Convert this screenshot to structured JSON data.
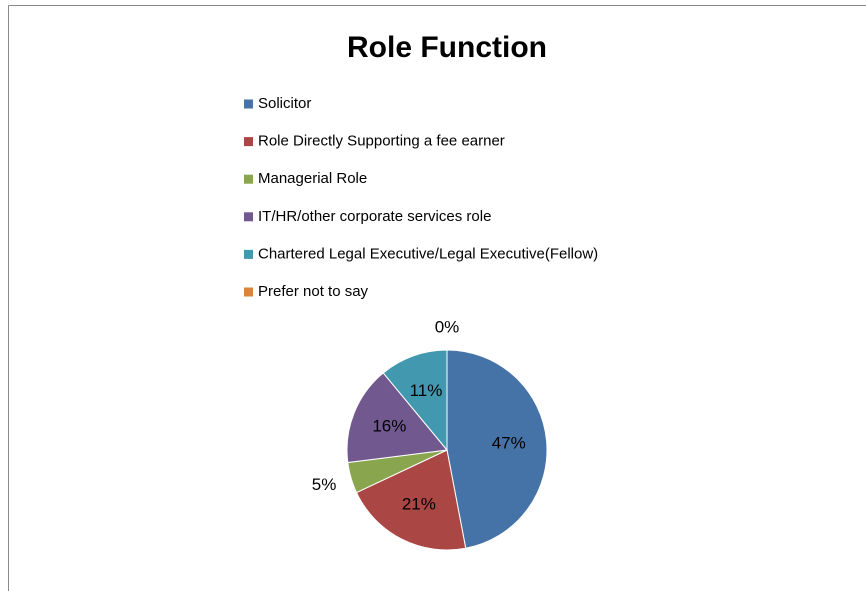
{
  "chart_data": {
    "type": "pie",
    "title": "Role Function",
    "categories": [
      "Solicitor",
      "Role Directly Supporting a fee earner",
      "Managerial Role",
      "IT/HR/other corporate services role",
      "Chartered Legal Executive/Legal Executive(Fellow)",
      "Prefer not to say"
    ],
    "values": [
      47,
      21,
      5,
      16,
      11,
      0
    ],
    "value_labels": [
      "47%",
      "21%",
      "5%",
      "16%",
      "11%",
      "0%"
    ],
    "colors": [
      "#4572A7",
      "#AA4643",
      "#89A54E",
      "#71588F",
      "#4198AF",
      "#DB843D"
    ],
    "legend": "top"
  }
}
